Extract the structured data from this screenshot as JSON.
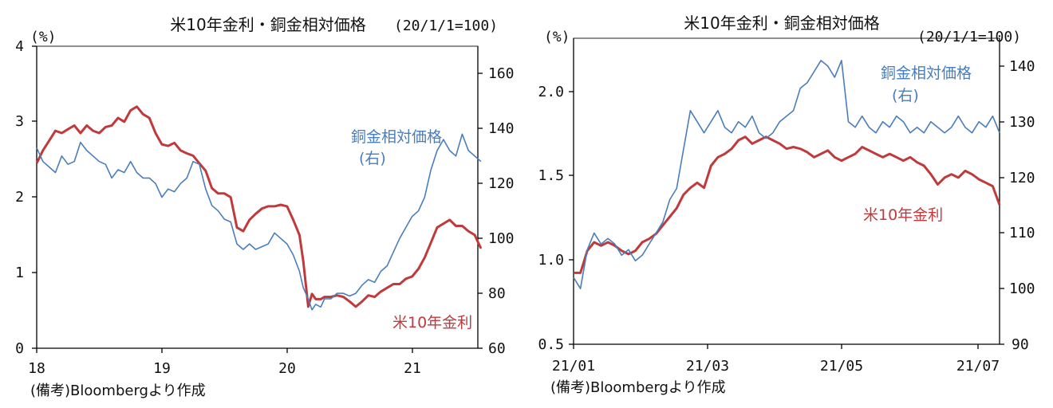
{
  "chart_data": [
    {
      "type": "line",
      "title": "米10年金利・銅金相対価格",
      "left_unit": "(%)",
      "right_unit": "(20/1/1=100)",
      "left_ylim": [
        0,
        4
      ],
      "left_ticks": [
        "0",
        "1",
        "2",
        "3",
        "4"
      ],
      "right_ylim": [
        60,
        170
      ],
      "right_ticks": [
        "60",
        "80",
        "100",
        "120",
        "140",
        "160"
      ],
      "x_ticks": [
        "18",
        "19",
        "20",
        "21"
      ],
      "grid": false,
      "source": "(備考)Bloombergより作成",
      "colors": {
        "rate": "#c0393b",
        "copper_gold": "#4a7ebb"
      },
      "series": [
        {
          "name": "米10年金利",
          "axis": "left",
          "x": [
            2018.0,
            2018.05,
            2018.1,
            2018.15,
            2018.2,
            2018.25,
            2018.3,
            2018.35,
            2018.4,
            2018.45,
            2018.5,
            2018.55,
            2018.6,
            2018.65,
            2018.7,
            2018.75,
            2018.8,
            2018.85,
            2018.9,
            2018.95,
            2019.0,
            2019.05,
            2019.1,
            2019.15,
            2019.2,
            2019.25,
            2019.3,
            2019.35,
            2019.4,
            2019.45,
            2019.5,
            2019.55,
            2019.6,
            2019.65,
            2019.7,
            2019.75,
            2019.8,
            2019.85,
            2019.9,
            2019.95,
            2020.0,
            2020.05,
            2020.1,
            2020.13,
            2020.17,
            2020.2,
            2020.23,
            2020.27,
            2020.3,
            2020.35,
            2020.4,
            2020.45,
            2020.5,
            2020.55,
            2020.6,
            2020.65,
            2020.7,
            2020.75,
            2020.8,
            2020.85,
            2020.9,
            2020.95,
            2021.0,
            2021.05,
            2021.1,
            2021.15,
            2021.2,
            2021.25,
            2021.3,
            2021.35,
            2021.4,
            2021.45,
            2021.5,
            2021.55
          ],
          "values": [
            2.45,
            2.62,
            2.75,
            2.88,
            2.85,
            2.9,
            2.95,
            2.85,
            2.95,
            2.88,
            2.85,
            2.93,
            2.95,
            3.05,
            3.0,
            3.15,
            3.2,
            3.1,
            3.05,
            2.85,
            2.7,
            2.68,
            2.72,
            2.62,
            2.58,
            2.55,
            2.45,
            2.35,
            2.12,
            2.05,
            2.05,
            2.0,
            1.6,
            1.55,
            1.7,
            1.78,
            1.85,
            1.88,
            1.88,
            1.9,
            1.88,
            1.7,
            1.5,
            1.15,
            0.55,
            0.72,
            0.65,
            0.65,
            0.68,
            0.68,
            0.7,
            0.68,
            0.62,
            0.55,
            0.62,
            0.7,
            0.68,
            0.75,
            0.8,
            0.85,
            0.85,
            0.92,
            0.95,
            1.05,
            1.2,
            1.4,
            1.6,
            1.65,
            1.7,
            1.62,
            1.62,
            1.55,
            1.5,
            1.32
          ]
        },
        {
          "name": "銅金相対価格",
          "label_line2": "(右)",
          "axis": "right",
          "x": [
            2018.0,
            2018.05,
            2018.1,
            2018.15,
            2018.2,
            2018.25,
            2018.3,
            2018.35,
            2018.4,
            2018.45,
            2018.5,
            2018.55,
            2018.6,
            2018.65,
            2018.7,
            2018.75,
            2018.8,
            2018.85,
            2018.9,
            2018.95,
            2019.0,
            2019.05,
            2019.1,
            2019.15,
            2019.2,
            2019.25,
            2019.3,
            2019.35,
            2019.4,
            2019.45,
            2019.5,
            2019.55,
            2019.6,
            2019.65,
            2019.7,
            2019.75,
            2019.8,
            2019.85,
            2019.9,
            2019.95,
            2020.0,
            2020.05,
            2020.1,
            2020.13,
            2020.17,
            2020.2,
            2020.23,
            2020.27,
            2020.3,
            2020.35,
            2020.4,
            2020.45,
            2020.5,
            2020.55,
            2020.6,
            2020.65,
            2020.7,
            2020.75,
            2020.8,
            2020.85,
            2020.9,
            2020.95,
            2021.0,
            2021.05,
            2021.1,
            2021.15,
            2021.2,
            2021.25,
            2021.3,
            2021.35,
            2021.4,
            2021.45,
            2021.5,
            2021.55
          ],
          "values": [
            133,
            128,
            126,
            124,
            130,
            127,
            128,
            135,
            132,
            130,
            128,
            127,
            122,
            125,
            124,
            128,
            124,
            122,
            122,
            120,
            115,
            118,
            117,
            120,
            122,
            128,
            127,
            118,
            112,
            110,
            107,
            106,
            98,
            96,
            98,
            96,
            97,
            98,
            102,
            100,
            98,
            94,
            88,
            82,
            78,
            74,
            76,
            75,
            78,
            78,
            80,
            80,
            79,
            80,
            83,
            85,
            84,
            88,
            90,
            95,
            100,
            104,
            108,
            110,
            115,
            125,
            132,
            136,
            132,
            130,
            138,
            132,
            130,
            128
          ]
        }
      ]
    },
    {
      "type": "line",
      "title": "米10年金利・銅金相対価格",
      "left_unit": "(%)",
      "right_unit": "(20/1/1=100)",
      "left_ylim": [
        0.5,
        2.3
      ],
      "left_ticks": [
        "0.5",
        "1.0",
        "1.5",
        "2.0"
      ],
      "right_ylim": [
        90,
        145
      ],
      "right_ticks": [
        "90",
        "100",
        "110",
        "120",
        "130",
        "140"
      ],
      "x_ticks": [
        "21/01",
        "21/03",
        "21/05",
        "21/07"
      ],
      "grid": false,
      "source": "(備考)Bloombergより作成",
      "colors": {
        "rate": "#c0393b",
        "copper_gold": "#4a7ebb"
      },
      "series": [
        {
          "name": "米10年金利",
          "axis": "left",
          "x": [
            0.0,
            0.1,
            0.2,
            0.3,
            0.4,
            0.5,
            0.6,
            0.7,
            0.8,
            0.9,
            1.0,
            1.1,
            1.2,
            1.3,
            1.4,
            1.5,
            1.6,
            1.7,
            1.8,
            1.9,
            2.0,
            2.1,
            2.2,
            2.3,
            2.4,
            2.5,
            2.6,
            2.7,
            2.8,
            2.9,
            3.0,
            3.1,
            3.2,
            3.3,
            3.4,
            3.5,
            3.6,
            3.7,
            3.8,
            3.9,
            4.0,
            4.1,
            4.2,
            4.3,
            4.4,
            4.5,
            4.6,
            4.7,
            4.8,
            4.9,
            5.0,
            5.1,
            5.2,
            5.3,
            5.4,
            5.5,
            5.6,
            5.7,
            5.8,
            5.9,
            6.0,
            6.1,
            6.2
          ],
          "values": [
            0.92,
            0.92,
            1.05,
            1.1,
            1.08,
            1.1,
            1.08,
            1.05,
            1.03,
            1.05,
            1.1,
            1.12,
            1.15,
            1.2,
            1.25,
            1.3,
            1.38,
            1.42,
            1.45,
            1.42,
            1.55,
            1.6,
            1.62,
            1.65,
            1.7,
            1.72,
            1.68,
            1.7,
            1.72,
            1.7,
            1.68,
            1.65,
            1.66,
            1.65,
            1.63,
            1.6,
            1.62,
            1.64,
            1.6,
            1.58,
            1.6,
            1.62,
            1.66,
            1.64,
            1.62,
            1.6,
            1.62,
            1.6,
            1.58,
            1.6,
            1.57,
            1.55,
            1.5,
            1.44,
            1.48,
            1.5,
            1.48,
            1.52,
            1.5,
            1.47,
            1.45,
            1.43,
            1.32
          ]
        },
        {
          "name": "銅金相対価格",
          "label_line2": "(右)",
          "axis": "right",
          "x": [
            0.0,
            0.1,
            0.2,
            0.3,
            0.4,
            0.5,
            0.6,
            0.7,
            0.8,
            0.9,
            1.0,
            1.1,
            1.2,
            1.3,
            1.4,
            1.5,
            1.6,
            1.7,
            1.8,
            1.9,
            2.0,
            2.1,
            2.2,
            2.3,
            2.4,
            2.5,
            2.6,
            2.7,
            2.8,
            2.9,
            3.0,
            3.1,
            3.2,
            3.3,
            3.4,
            3.5,
            3.6,
            3.7,
            3.8,
            3.9,
            4.0,
            4.1,
            4.2,
            4.3,
            4.4,
            4.5,
            4.6,
            4.7,
            4.8,
            4.9,
            5.0,
            5.1,
            5.2,
            5.3,
            5.4,
            5.5,
            5.6,
            5.7,
            5.8,
            5.9,
            6.0,
            6.1,
            6.2
          ],
          "values": [
            102,
            100,
            107,
            110,
            108,
            109,
            108,
            106,
            107,
            105,
            106,
            108,
            110,
            112,
            116,
            118,
            125,
            132,
            130,
            128,
            130,
            132,
            129,
            128,
            130,
            129,
            131,
            128,
            127,
            128,
            130,
            131,
            132,
            136,
            137,
            139,
            141,
            140,
            138,
            141,
            130,
            129,
            131,
            129,
            128,
            130,
            129,
            131,
            130,
            128,
            129,
            128,
            130,
            129,
            128,
            129,
            131,
            129,
            128,
            130,
            129,
            131,
            128
          ]
        }
      ]
    }
  ]
}
